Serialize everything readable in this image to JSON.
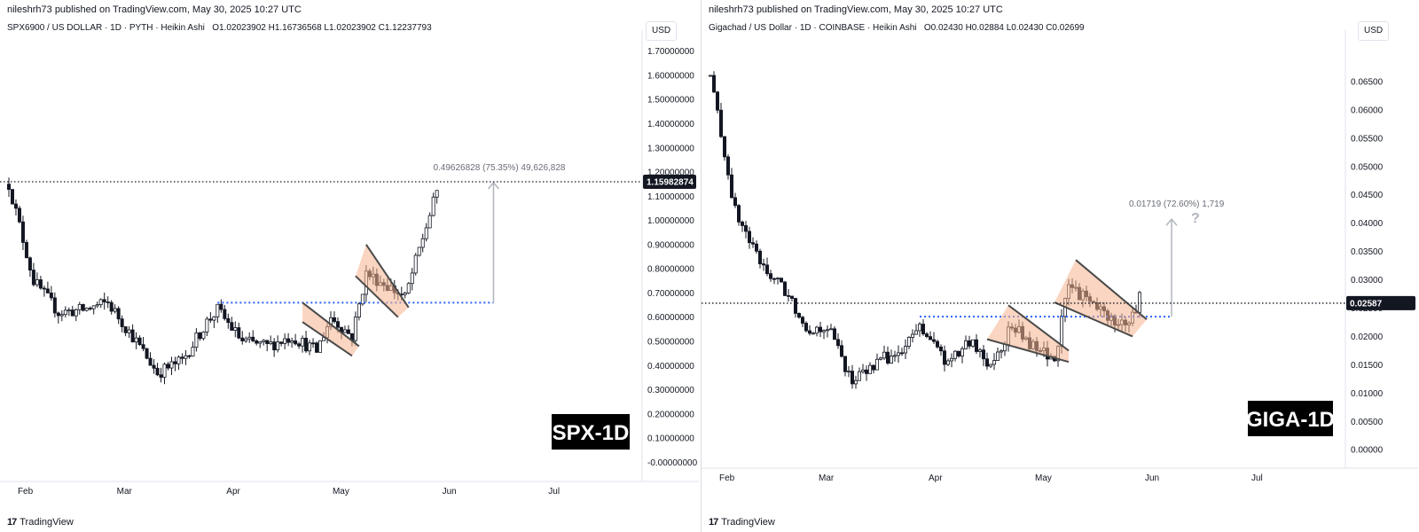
{
  "panels": [
    {
      "id": "left",
      "publisher": "nileshrh73 published on TradingView.com, May 30, 2025 10:27 UTC",
      "symbol": "SPX6900 / US DOLLAR · 1D · PYTH · Heikin Ashi",
      "ohlc": "O1.02023902  H1.16736568  L1.02023902  C1.12237793",
      "currency": "USD",
      "badge": "SPX-1D",
      "price_tag": "1.15982874",
      "annotation": "0.49626828 (75.35%) 49,626,828",
      "question_mark": "",
      "yticks": [
        "1.70000000",
        "1.60000000",
        "1.50000000",
        "1.40000000",
        "1.30000000",
        "1.20000000",
        "1.10000000",
        "1.00000000",
        "0.90000000",
        "0.80000000",
        "0.70000000",
        "0.60000000",
        "0.50000000",
        "0.40000000",
        "0.30000000",
        "0.20000000",
        "0.10000000",
        "-0.00000000"
      ],
      "xticks": [
        "Feb",
        "Mar",
        "Apr",
        "May",
        "Jun",
        "Jul"
      ],
      "footer": "TradingView"
    },
    {
      "id": "right",
      "publisher": "nileshrh73 published on TradingView.com, May 30, 2025 10:27 UTC",
      "symbol": "Gigachad / US Dollar · 1D · COINBASE · Heikin Ashi",
      "ohlc": "O0.02430  H0.02884  L0.02430  C0.02699",
      "currency": "USD",
      "badge": "GIGA-1D",
      "price_tag": "0.02587",
      "annotation": "0.01719 (72.60%) 1,719",
      "question_mark": "?",
      "yticks": [
        "0.06500",
        "0.06000",
        "0.05500",
        "0.05000",
        "0.04500",
        "0.04000",
        "0.03500",
        "0.03000",
        "0.02500",
        "0.02000",
        "0.01500",
        "0.01000",
        "0.00500",
        "0.00000"
      ],
      "xticks": [
        "Feb",
        "Mar",
        "Apr",
        "May",
        "Jun",
        "Jul"
      ],
      "footer": "TradingView"
    }
  ],
  "colors": {
    "up": "#131722",
    "down": "#131722",
    "support": "#2962ff",
    "wedge": "#f5b28e",
    "wedgeLine": "#4a4a4a",
    "measure": "#b2b5be",
    "badge": "#000000"
  },
  "chart_data": [
    {
      "type": "candlestick",
      "title": "SPX6900 / US DOLLAR · 1D · PYTH · Heikin Ashi",
      "ylim": [
        -0.05,
        1.75
      ],
      "x_range": [
        "2025-01-29",
        "2025-07-27"
      ],
      "last_price": 1.15982874,
      "support_level": 0.66,
      "measured_move": 0.49626828,
      "anchors": [
        [
          "2025-01-29",
          1.15
        ],
        [
          "2025-02-05",
          0.75
        ],
        [
          "2025-02-12",
          0.62
        ],
        [
          "2025-02-19",
          0.63
        ],
        [
          "2025-02-26",
          0.66
        ],
        [
          "2025-03-05",
          0.52
        ],
        [
          "2025-03-12",
          0.37
        ],
        [
          "2025-03-19",
          0.42
        ],
        [
          "2025-03-26",
          0.58
        ],
        [
          "2025-03-29",
          0.63
        ],
        [
          "2025-04-05",
          0.5
        ],
        [
          "2025-04-12",
          0.48
        ],
        [
          "2025-04-19",
          0.52
        ],
        [
          "2025-04-26",
          0.46
        ],
        [
          "2025-04-30",
          0.6
        ],
        [
          "2025-05-06",
          0.52
        ],
        [
          "2025-05-10",
          0.78
        ],
        [
          "2025-05-15",
          0.74
        ],
        [
          "2025-05-21",
          0.68
        ],
        [
          "2025-05-25",
          0.88
        ],
        [
          "2025-05-30",
          1.12
        ]
      ]
    },
    {
      "type": "candlestick",
      "title": "Gigachad / US Dollar · 1D · COINBASE · Heikin Ashi",
      "ylim": [
        -0.002,
        0.0725
      ],
      "x_range": [
        "2025-01-29",
        "2025-07-27"
      ],
      "last_price": 0.02587,
      "support_level": 0.0235,
      "measured_move": 0.01719,
      "anchors": [
        [
          "2025-01-29",
          0.066
        ],
        [
          "2025-02-05",
          0.042
        ],
        [
          "2025-02-12",
          0.033
        ],
        [
          "2025-02-19",
          0.028
        ],
        [
          "2025-02-26",
          0.021
        ],
        [
          "2025-03-03",
          0.022
        ],
        [
          "2025-03-10",
          0.012
        ],
        [
          "2025-03-18",
          0.016
        ],
        [
          "2025-03-24",
          0.017
        ],
        [
          "2025-03-29",
          0.022
        ],
        [
          "2025-04-06",
          0.015
        ],
        [
          "2025-04-12",
          0.019
        ],
        [
          "2025-04-18",
          0.015
        ],
        [
          "2025-04-24",
          0.022
        ],
        [
          "2025-04-30",
          0.018
        ],
        [
          "2025-05-06",
          0.016
        ],
        [
          "2025-05-10",
          0.029
        ],
        [
          "2025-05-16",
          0.026
        ],
        [
          "2025-05-22",
          0.023
        ],
        [
          "2025-05-27",
          0.022
        ],
        [
          "2025-05-30",
          0.027
        ]
      ]
    }
  ]
}
